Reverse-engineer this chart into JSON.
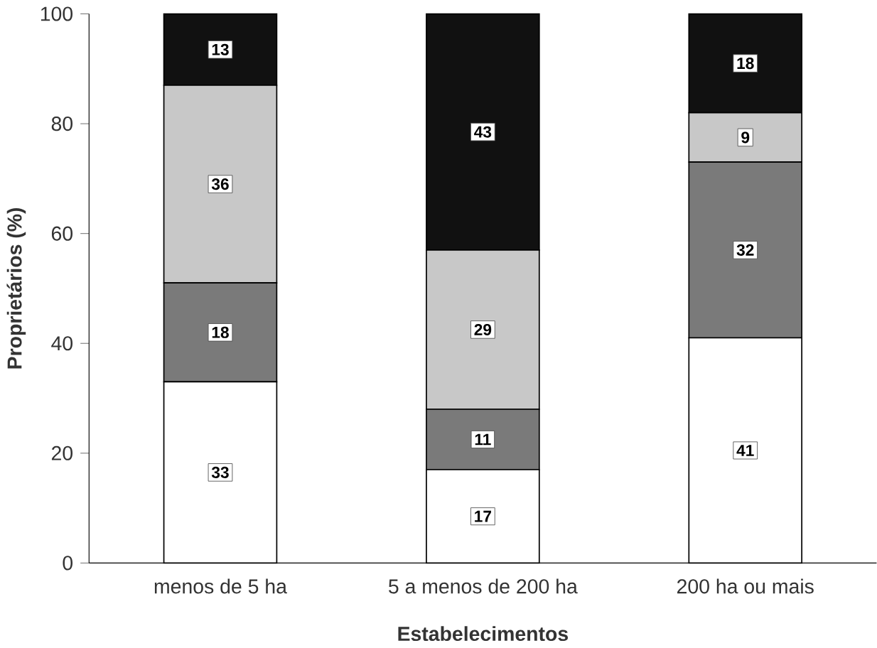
{
  "chart_data": {
    "type": "bar",
    "stacked": true,
    "xlabel": "Estabelecimentos",
    "ylabel": "Proprietários (%)",
    "categories": [
      "menos de 5 ha",
      "5 a menos de 200 ha",
      "200 ha ou mais"
    ],
    "series": [
      {
        "color": "#ffffff",
        "values": [
          33,
          17,
          41
        ]
      },
      {
        "color": "#7a7a7a",
        "values": [
          18,
          11,
          32
        ]
      },
      {
        "color": "#c8c8c8",
        "values": [
          36,
          29,
          9
        ]
      },
      {
        "color": "#111111",
        "values": [
          13,
          43,
          18
        ]
      }
    ],
    "ylim": [
      0,
      100
    ],
    "yticks": [
      0,
      20,
      40,
      60,
      80,
      100
    ],
    "data_labels": true
  }
}
